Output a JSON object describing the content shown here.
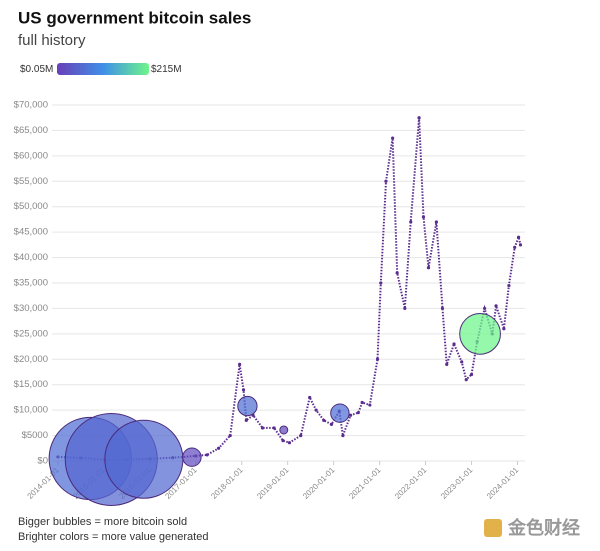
{
  "chart_data": {
    "type": "bubble",
    "title": "US government bitcoin sales",
    "subtitle": "full history",
    "xlim": [
      "2013-11-15",
      "2024-03-01"
    ],
    "xticks": [
      "2014-01-01",
      "2015-01-01",
      "2016-01-01",
      "2017-01-01",
      "2018-01-01",
      "2019-01-01",
      "2020-01-01",
      "2021-01-01",
      "2022-01-01",
      "2023-01-01",
      "2024-01-01"
    ],
    "ylim": [
      0,
      70000
    ],
    "yticks": [
      {
        "value": 0,
        "label": "$0"
      },
      {
        "value": 5000,
        "label": "$5000"
      },
      {
        "value": 10000,
        "label": "$10,000"
      },
      {
        "value": 15000,
        "label": "$15,000"
      },
      {
        "value": 20000,
        "label": "$20,000"
      },
      {
        "value": 25000,
        "label": "$25,000"
      },
      {
        "value": 30000,
        "label": "$30,000"
      },
      {
        "value": 35000,
        "label": "$35,000"
      },
      {
        "value": 40000,
        "label": "$40,000"
      },
      {
        "value": 45000,
        "label": "$45,000"
      },
      {
        "value": 50000,
        "label": "$50,000"
      },
      {
        "value": 55000,
        "label": "$55,000"
      },
      {
        "value": 60000,
        "label": "$60,000"
      },
      {
        "value": 65000,
        "label": "$65,000"
      },
      {
        "value": 70000,
        "label": "$70,000"
      }
    ],
    "grid": true,
    "color_scale": {
      "range": [
        0.05,
        215
      ],
      "colors": [
        "#6a3fb8",
        "#3f8fe8",
        "#6ef58a"
      ],
      "ticks": [
        {
          "value": 0.05,
          "label": "$0.05M"
        },
        {
          "value": 215,
          "label": "$215M"
        }
      ]
    },
    "price": {
      "color": "#5b2d8e",
      "x": [
        "2014-01-01",
        "2014-07-01",
        "2015-01-15",
        "2015-07-01",
        "2016-01-01",
        "2016-07-01",
        "2017-01-01",
        "2017-04-01",
        "2017-07-01",
        "2017-10-01",
        "2017-12-15",
        "2018-01-15",
        "2018-02-06",
        "2018-04-01",
        "2018-06-15",
        "2018-09-15",
        "2018-11-25",
        "2019-01-15",
        "2019-04-15",
        "2019-06-25",
        "2019-08-15",
        "2019-10-15",
        "2019-12-15",
        "2020-02-15",
        "2020-03-15",
        "2020-05-15",
        "2020-07-15",
        "2020-08-15",
        "2020-10-15",
        "2020-12-15",
        "2021-01-10",
        "2021-02-20",
        "2021-04-14",
        "2021-05-20",
        "2021-07-20",
        "2021-09-05",
        "2021-11-10",
        "2021-12-15",
        "2022-01-24",
        "2022-03-28",
        "2022-05-15",
        "2022-06-18",
        "2022-08-15",
        "2022-10-15",
        "2022-11-20",
        "2023-01-01",
        "2023-02-15",
        "2023-04-15",
        "2023-06-15",
        "2023-07-15",
        "2023-09-15",
        "2023-10-25",
        "2023-12-10",
        "2024-01-10",
        "2024-01-25"
      ],
      "values": [
        800,
        600,
        250,
        280,
        430,
        650,
        1000,
        1200,
        2500,
        5000,
        19000,
        14000,
        8000,
        9000,
        6500,
        6500,
        4000,
        3600,
        5000,
        12500,
        10000,
        8000,
        7200,
        9800,
        5000,
        9000,
        9500,
        11500,
        11000,
        20000,
        35000,
        55000,
        63500,
        37000,
        30000,
        47000,
        67500,
        48000,
        38000,
        47000,
        30000,
        19000,
        23000,
        19500,
        16000,
        17000,
        23500,
        30000,
        25000,
        30500,
        26000,
        34500,
        42000,
        44000,
        42500
      ]
    },
    "sales": {
      "x": [
        "2014-09-15",
        "2015-03-01",
        "2015-11-15",
        "2016-12-01",
        "2018-02-15",
        "2018-12-01",
        "2020-02-20",
        "2023-03-10"
      ],
      "values": [
        500,
        300,
        350,
        750,
        10800,
        6100,
        9400,
        25000
      ],
      "sizes": [
        40000,
        50000,
        36000,
        2000,
        2200,
        300,
        2000,
        9800
      ],
      "amounts": [
        18,
        13,
        15,
        2,
        20,
        1,
        19,
        215
      ]
    },
    "notes": [
      "Bigger bubbles = more bitcoin sold",
      "Brighter colors = more value generated"
    ],
    "watermark": "金色财经"
  }
}
